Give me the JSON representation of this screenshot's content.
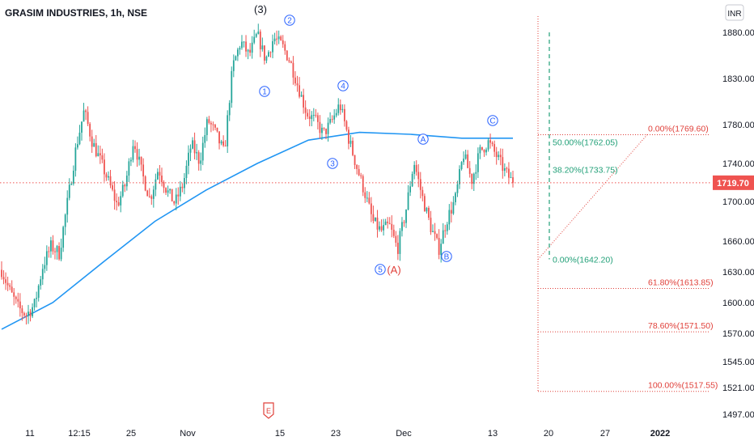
{
  "header": {
    "title": "GRASIM INDUSTRIES, 1h, NSE",
    "currency": "INR",
    "event_marker": "E"
  },
  "chart_data": {
    "type": "candlestick",
    "symbol": "GRASIM INDUSTRIES",
    "interval": "1h",
    "exchange": "NSE",
    "y_ticks": [
      1880,
      1830,
      1780,
      1740,
      1700,
      1660,
      1630,
      1600,
      1570,
      1545,
      1521,
      1497
    ],
    "y_tick_labels": [
      "1880.00",
      "1830.00",
      "1780.00",
      "1740.00",
      "1700.00",
      "1660.00",
      "1630.00",
      "1600.00",
      "1570.00",
      "1545.00",
      "1521.00",
      "1497.00"
    ],
    "x_tick_labels": [
      "11",
      "12:15",
      "25",
      "Nov",
      "15",
      "23",
      "Dec",
      "13",
      "20",
      "27",
      "2022"
    ],
    "last_price": 1719.7,
    "last_price_label": "1719.70",
    "price_path": [
      [
        1632,
        1611,
        1595,
        1588,
        1598,
        1636,
        1655,
        1648,
        1700,
        1755,
        1795,
        1762,
        1742,
        1720,
        1696,
        1718,
        1765,
        1730,
        1702,
        1735,
        1712,
        1698,
        1718,
        1760,
        1742,
        1785,
        1770,
        1750,
        1842,
        1870,
        1855,
        1878,
        1850,
        1874,
        1866,
        1848,
        1820,
        1792,
        1785,
        1770,
        1783,
        1802,
        1768,
        1738,
        1710,
        1680,
        1670,
        1676,
        1652,
        1690,
        1742,
        1705,
        1675,
        1652,
        1682,
        1702,
        1750,
        1722,
        1752,
        1762,
        1748,
        1732,
        1719.7
      ]
    ],
    "moving_average": [
      1574,
      1600,
      1640,
      1680,
      1712,
      1740,
      1764,
      1772,
      1770,
      1766,
      1766
    ],
    "fib_levels_right": [
      {
        "ratio": "0.00%",
        "price": 1769.6,
        "label": "0.00%(1769.60)"
      },
      {
        "ratio": "61.80%",
        "price": 1613.85,
        "label": "61.80%(1613.85)"
      },
      {
        "ratio": "78.60%",
        "price": 1571.5,
        "label": "78.60%(1571.50)"
      },
      {
        "ratio": "100.00%",
        "price": 1517.55,
        "label": "100.00%(1517.55)"
      }
    ],
    "fib_levels_inner": [
      {
        "ratio": "50.00%",
        "price": 1762.05,
        "label": "50.00%(1762.05)"
      },
      {
        "ratio": "38.20%",
        "price": 1733.75,
        "label": "38.20%(1733.75)"
      },
      {
        "ratio": "0.00%",
        "price": 1642.2,
        "label": "0.00%(1642.20)"
      }
    ],
    "wave_labels": [
      {
        "label": "(3)",
        "style": "black"
      },
      {
        "label": "1",
        "style": "blue"
      },
      {
        "label": "2",
        "style": "blue"
      },
      {
        "label": "3",
        "style": "blue"
      },
      {
        "label": "4",
        "style": "blue"
      },
      {
        "label": "5",
        "style": "blue"
      },
      {
        "label": "(A)",
        "style": "red"
      },
      {
        "label": "A",
        "style": "blue"
      },
      {
        "label": "B",
        "style": "blue"
      },
      {
        "label": "C",
        "style": "blue"
      }
    ],
    "colors": {
      "up": "#26a69a",
      "down": "#ef5350",
      "ma": "#2196f3",
      "fib": "#e0403a",
      "fib_inner": "#22a078",
      "grid_axis": "#131722",
      "wave": "#2962ff"
    }
  }
}
